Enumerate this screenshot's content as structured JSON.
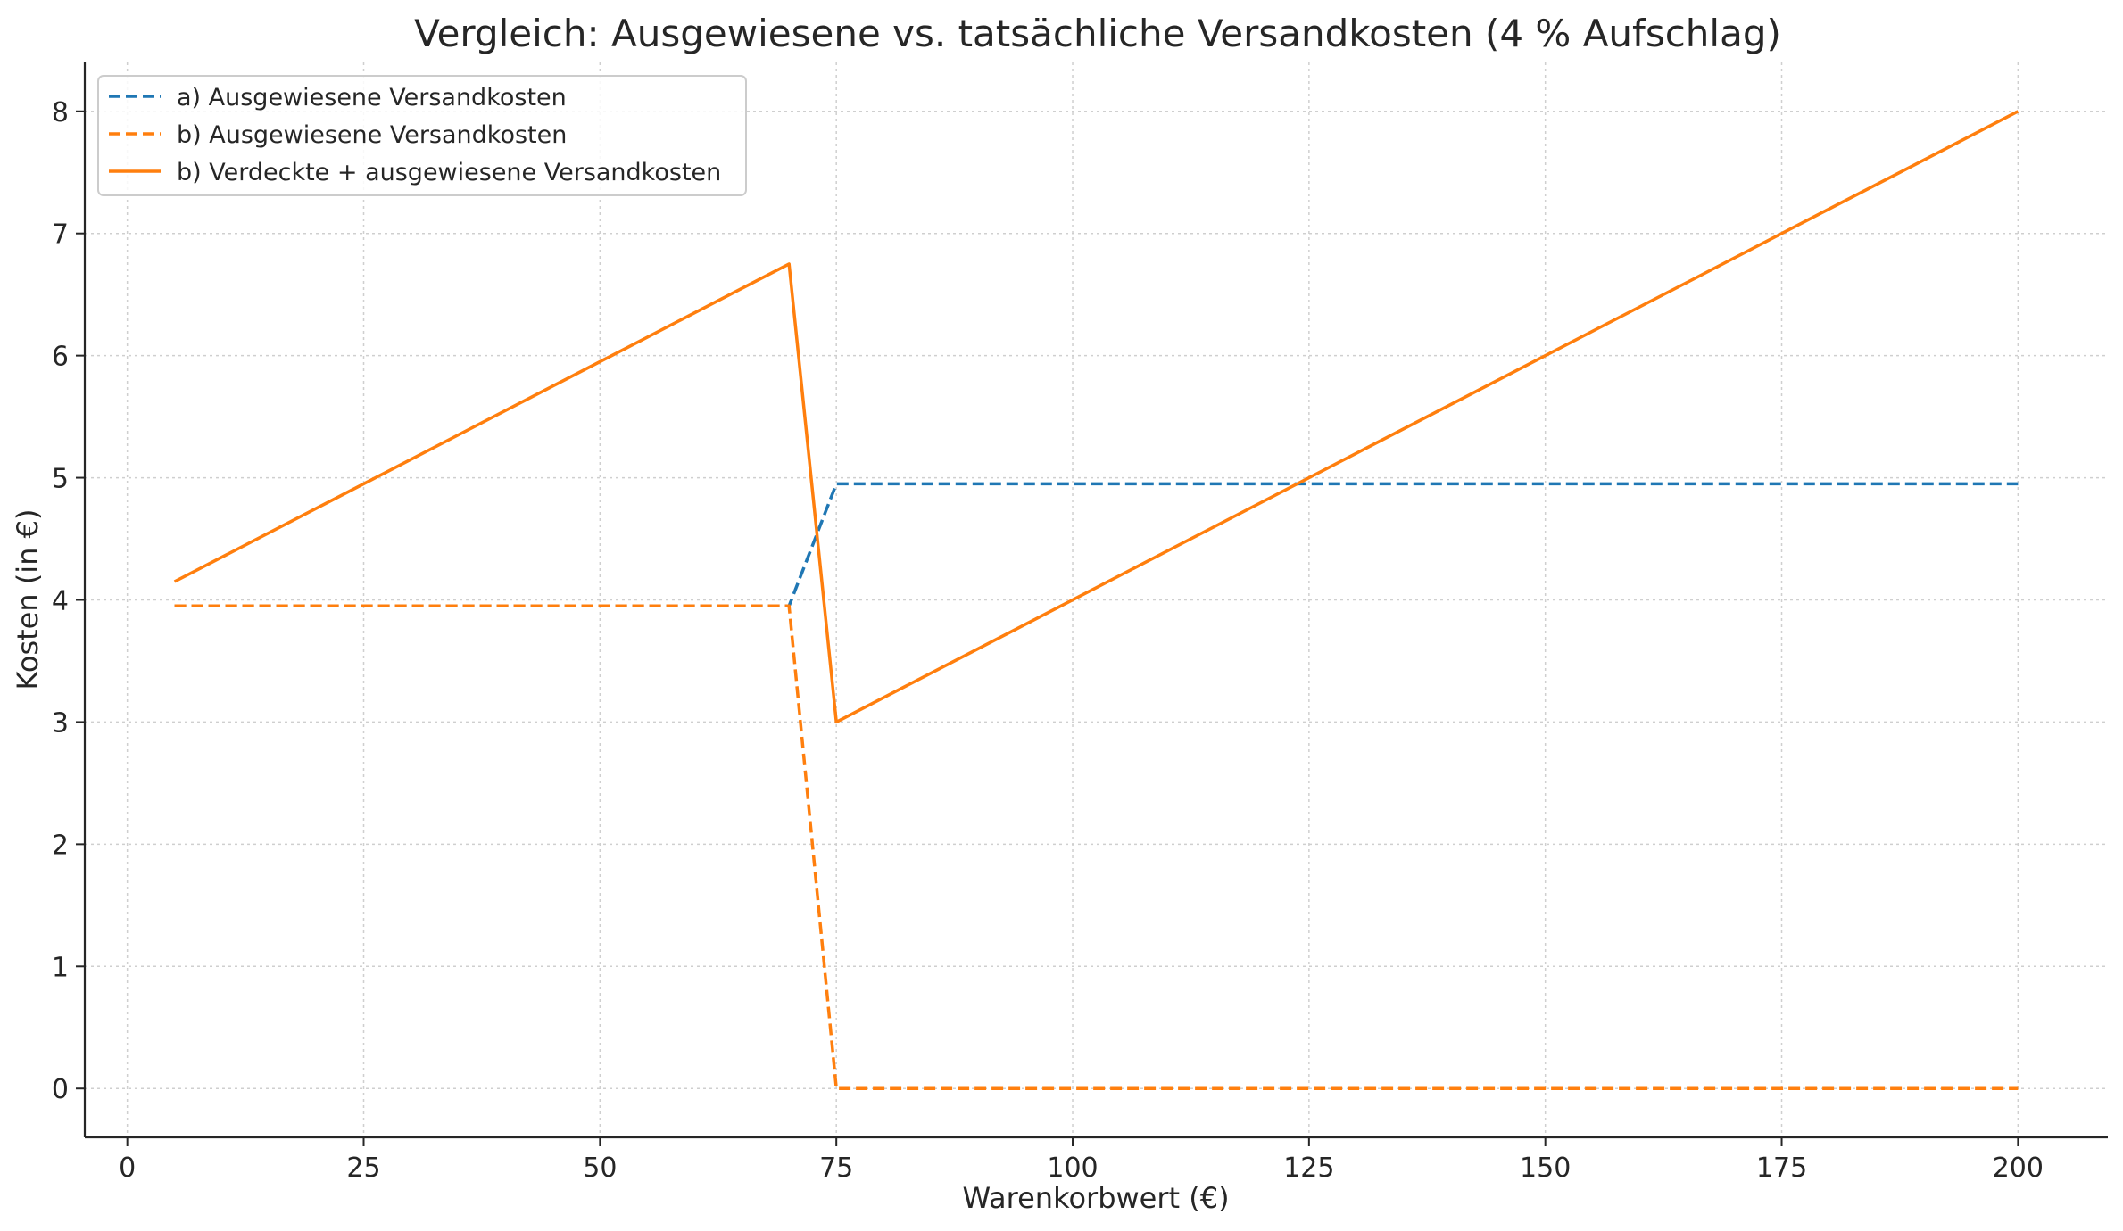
{
  "chart_data": {
    "type": "line",
    "title": "Vergleich: Ausgewiesene vs. tatsächliche Versandkosten (4 % Aufschlag)",
    "xlabel": "Warenkorbwert (€)",
    "ylabel": "Kosten (in €)",
    "xlim": [
      -4.5,
      209.5
    ],
    "ylim": [
      -0.4,
      8.4
    ],
    "xticks": [
      0,
      25,
      50,
      75,
      100,
      125,
      150,
      175,
      200
    ],
    "yticks": [
      0,
      1,
      2,
      3,
      4,
      5,
      6,
      7,
      8
    ],
    "grid": true,
    "legend_position": "top-left",
    "series": [
      {
        "name": "a) Ausgewiesene Versandkosten",
        "color": "#1f77b4",
        "style": "dashed",
        "x": [
          5,
          70,
          75,
          200
        ],
        "y": [
          3.95,
          3.95,
          4.95,
          4.95
        ]
      },
      {
        "name": "b) Ausgewiesene Versandkosten",
        "color": "#ff7f0e",
        "style": "dashed",
        "x": [
          5,
          70,
          75,
          200
        ],
        "y": [
          3.95,
          3.95,
          0,
          0
        ]
      },
      {
        "name": "b) Verdeckte + ausgewiesene Versandkosten",
        "color": "#ff7f0e",
        "style": "solid",
        "x": [
          5,
          70,
          75,
          200
        ],
        "y": [
          4.15,
          6.75,
          3.0,
          8.0
        ]
      }
    ]
  }
}
